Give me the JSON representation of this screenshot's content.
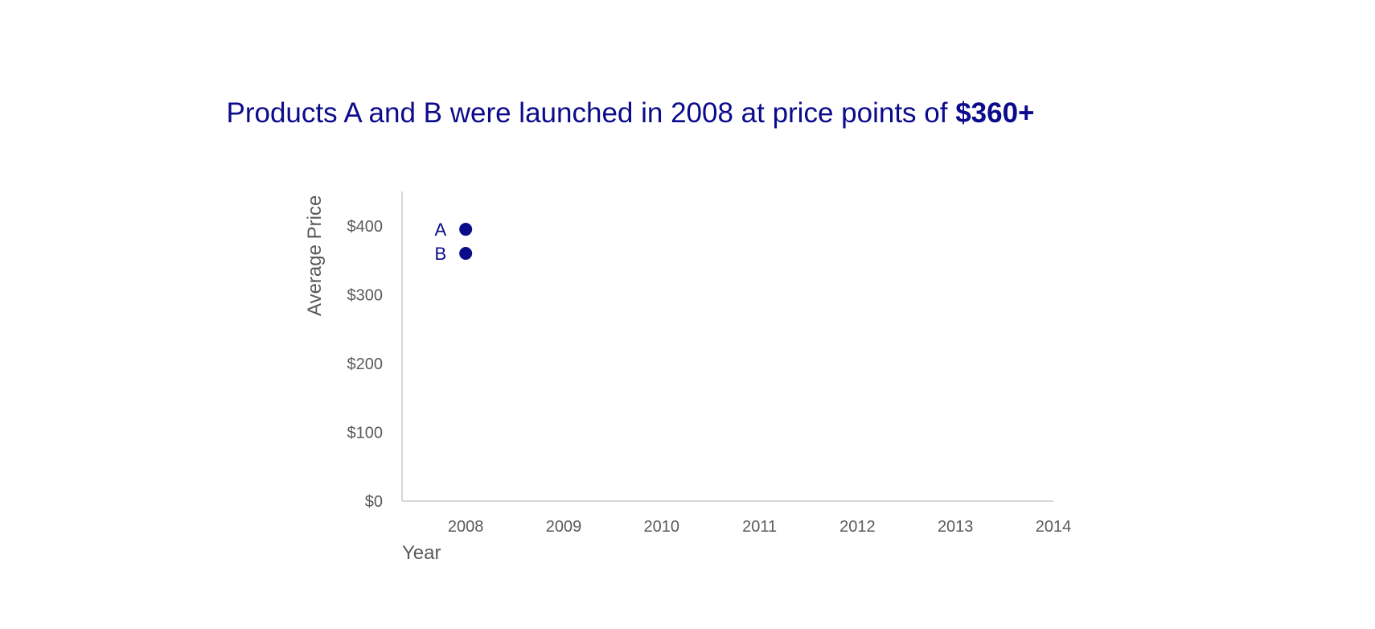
{
  "chart_data": {
    "type": "scatter",
    "title": "Products A and B were launched in 2008 at price points of ",
    "title_emphasis": "$360+",
    "xlabel": "Year",
    "ylabel": "Average Price",
    "x_ticks": [
      "2008",
      "2009",
      "2010",
      "2011",
      "2012",
      "2013",
      "2014"
    ],
    "y_ticks": [
      "$0",
      "$100",
      "$200",
      "$300",
      "$400"
    ],
    "xlim": [
      2007.35,
      2014
    ],
    "ylim": [
      0,
      450
    ],
    "grid": false,
    "legend": "none",
    "series": [
      {
        "name": "A",
        "points": [
          {
            "x": 2008,
            "y": 395
          }
        ]
      },
      {
        "name": "B",
        "points": [
          {
            "x": 2008,
            "y": 360
          }
        ]
      }
    ],
    "colors": {
      "title": "#0b0b8c",
      "points": "#0b0b8c",
      "axis": "#c8c8c8",
      "tick_text": "#5a5a5a"
    }
  }
}
